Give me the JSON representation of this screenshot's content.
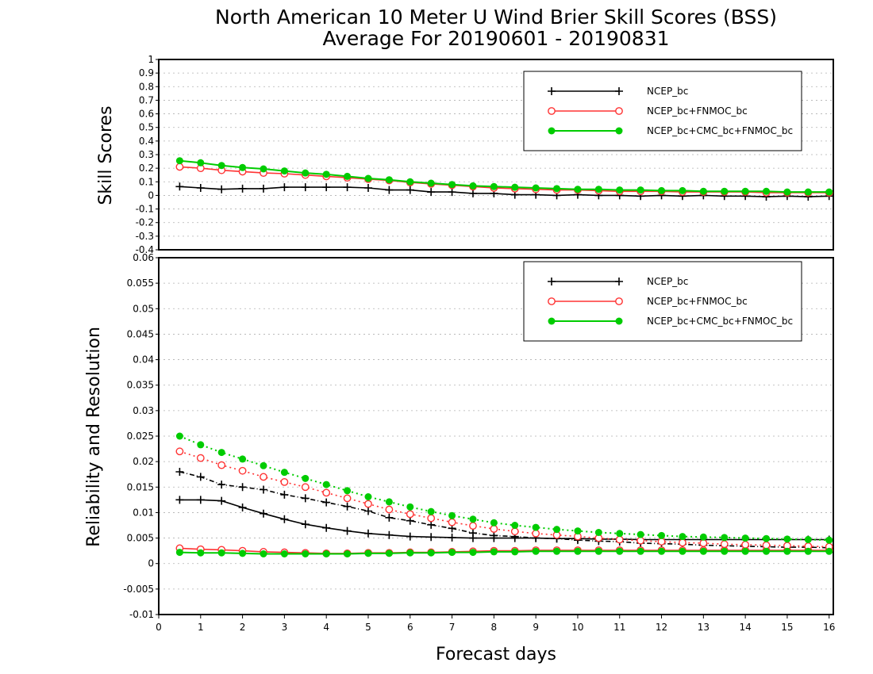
{
  "title_line1": "North American 10 Meter U Wind Brier Skill Scores (BSS)",
  "title_line2": "Average For 20190601 - 20190831",
  "xlabel": "Forecast days",
  "chart_data": [
    {
      "type": "line",
      "ylabel": "Skill Scores",
      "xlim": [
        0,
        16.1
      ],
      "ylim": [
        -0.4,
        1
      ],
      "yticks": [
        "-0.4",
        "-0.3",
        "-0.2",
        "-0.1",
        "0",
        "0.1",
        "0.2",
        "0.3",
        "0.4",
        "0.5",
        "0.6",
        "0.7",
        "0.8",
        "0.9",
        "1"
      ],
      "grid": true,
      "legend": "top-right",
      "x": [
        0.5,
        1,
        1.5,
        2,
        2.5,
        3,
        3.5,
        4,
        4.5,
        5,
        5.5,
        6,
        6.5,
        7,
        7.5,
        8,
        8.5,
        9,
        9.5,
        10,
        10.5,
        11,
        11.5,
        12,
        12.5,
        13,
        13.5,
        14,
        14.5,
        15,
        15.5,
        16
      ],
      "series": [
        {
          "name": "NCEP_bc",
          "color": "#000000",
          "marker": "plus",
          "values": [
            0.065,
            0.055,
            0.045,
            0.05,
            0.05,
            0.06,
            0.06,
            0.06,
            0.06,
            0.055,
            0.04,
            0.04,
            0.025,
            0.025,
            0.015,
            0.015,
            0.005,
            0.005,
            0.0,
            0.005,
            0.0,
            0.0,
            -0.005,
            0.0,
            -0.005,
            0.0,
            -0.005,
            -0.005,
            -0.01,
            -0.005,
            -0.01,
            -0.005
          ]
        },
        {
          "name": "NCEP_bc+FNMOC_bc",
          "color": "#ff3333",
          "marker": "circle",
          "values": [
            0.21,
            0.2,
            0.185,
            0.175,
            0.165,
            0.16,
            0.15,
            0.14,
            0.13,
            0.12,
            0.11,
            0.095,
            0.085,
            0.075,
            0.065,
            0.055,
            0.05,
            0.045,
            0.04,
            0.04,
            0.035,
            0.03,
            0.03,
            0.03,
            0.025,
            0.025,
            0.025,
            0.025,
            0.02,
            0.02,
            0.02,
            0.02
          ]
        },
        {
          "name": "NCEP_bc+CMC_bc+FNMOC_bc",
          "color": "#00cc00",
          "marker": "dot",
          "values": [
            0.255,
            0.24,
            0.22,
            0.205,
            0.195,
            0.18,
            0.165,
            0.155,
            0.14,
            0.125,
            0.115,
            0.1,
            0.09,
            0.08,
            0.07,
            0.065,
            0.06,
            0.055,
            0.05,
            0.045,
            0.045,
            0.04,
            0.04,
            0.035,
            0.035,
            0.03,
            0.03,
            0.03,
            0.03,
            0.025,
            0.025,
            0.025
          ]
        }
      ]
    },
    {
      "type": "line",
      "ylabel": "Reliability and Resolution",
      "xlim": [
        0,
        16.1
      ],
      "ylim": [
        -0.01,
        0.06
      ],
      "yticks": [
        "-0.01",
        "-0.005",
        "0",
        "0.005",
        "0.01",
        "0.015",
        "0.02",
        "0.025",
        "0.03",
        "0.035",
        "0.04",
        "0.045",
        "0.05",
        "0.055",
        "0.06"
      ],
      "xticks": [
        "0",
        "1",
        "2",
        "3",
        "4",
        "5",
        "6",
        "7",
        "8",
        "9",
        "10",
        "11",
        "12",
        "13",
        "14",
        "15",
        "16"
      ],
      "grid": true,
      "legend": "top-right",
      "x": [
        0.5,
        1,
        1.5,
        2,
        2.5,
        3,
        3.5,
        4,
        4.5,
        5,
        5.5,
        6,
        6.5,
        7,
        7.5,
        8,
        8.5,
        9,
        9.5,
        10,
        10.5,
        11,
        11.5,
        12,
        12.5,
        13,
        13.5,
        14,
        14.5,
        15,
        15.5,
        16
      ],
      "series": [
        {
          "name": "NCEP_bc",
          "color": "#000000",
          "marker": "plus",
          "role": "reliability",
          "values": [
            0.0125,
            0.0125,
            0.0123,
            0.011,
            0.0098,
            0.0087,
            0.0077,
            0.007,
            0.0064,
            0.0059,
            0.0056,
            0.0053,
            0.0052,
            0.0051,
            0.005,
            0.005,
            0.005,
            0.005,
            0.0049,
            0.0049,
            0.0048,
            0.0048,
            0.0047,
            0.0047,
            0.0047,
            0.0047,
            0.0047,
            0.0047,
            0.0047,
            0.0047,
            0.0047,
            0.0047
          ]
        },
        {
          "name": "NCEP_bc",
          "color": "#000000",
          "marker": "plus",
          "role": "resolution",
          "values": [
            0.018,
            0.017,
            0.0155,
            0.015,
            0.0145,
            0.0135,
            0.0128,
            0.012,
            0.0112,
            0.0103,
            0.009,
            0.0084,
            0.0076,
            0.0069,
            0.006,
            0.0055,
            0.0053,
            0.005,
            0.0049,
            0.0046,
            0.0044,
            0.0043,
            0.004,
            0.0039,
            0.0038,
            0.0036,
            0.0035,
            0.0034,
            0.0033,
            0.0032,
            0.0032,
            0.0031
          ]
        },
        {
          "name": "NCEP_bc+FNMOC_bc",
          "color": "#ff3333",
          "marker": "circle",
          "role": "reliability",
          "values": [
            0.003,
            0.0028,
            0.0027,
            0.0025,
            0.0023,
            0.0022,
            0.0021,
            0.002,
            0.002,
            0.0021,
            0.0021,
            0.0022,
            0.0022,
            0.0023,
            0.0024,
            0.0025,
            0.0025,
            0.0026,
            0.0026,
            0.0026,
            0.0026,
            0.0026,
            0.0026,
            0.0026,
            0.0026,
            0.0026,
            0.0026,
            0.0026,
            0.0026,
            0.0026,
            0.0026,
            0.0026
          ]
        },
        {
          "name": "NCEP_bc+FNMOC_bc",
          "color": "#ff3333",
          "marker": "circle",
          "role": "resolution",
          "values": [
            0.022,
            0.0207,
            0.0193,
            0.0182,
            0.017,
            0.016,
            0.015,
            0.0139,
            0.0128,
            0.0117,
            0.0106,
            0.0097,
            0.0089,
            0.0081,
            0.0074,
            0.0068,
            0.0063,
            0.0059,
            0.0056,
            0.0053,
            0.005,
            0.0047,
            0.0045,
            0.0043,
            0.0041,
            0.004,
            0.0038,
            0.0037,
            0.0036,
            0.0035,
            0.0034,
            0.0033
          ]
        },
        {
          "name": "NCEP_bc+CMC_bc+FNMOC_bc",
          "color": "#00cc00",
          "marker": "dot",
          "role": "reliability",
          "values": [
            0.0022,
            0.0021,
            0.0021,
            0.002,
            0.0019,
            0.0019,
            0.0019,
            0.0019,
            0.0019,
            0.002,
            0.002,
            0.0021,
            0.0021,
            0.0022,
            0.0022,
            0.0023,
            0.0023,
            0.0024,
            0.0024,
            0.0024,
            0.0024,
            0.0024,
            0.0024,
            0.0024,
            0.0024,
            0.0024,
            0.0024,
            0.0024,
            0.0024,
            0.0024,
            0.0024,
            0.0024
          ]
        },
        {
          "name": "NCEP_bc+CMC_bc+FNMOC_bc",
          "color": "#00cc00",
          "marker": "dot",
          "role": "resolution",
          "values": [
            0.025,
            0.0233,
            0.0218,
            0.0205,
            0.0192,
            0.0179,
            0.0167,
            0.0155,
            0.0143,
            0.0131,
            0.0121,
            0.0111,
            0.0102,
            0.0094,
            0.0087,
            0.008,
            0.0075,
            0.0071,
            0.0067,
            0.0064,
            0.0061,
            0.0059,
            0.0057,
            0.0055,
            0.0053,
            0.0052,
            0.0051,
            0.005,
            0.0049,
            0.0048,
            0.0047,
            0.0046
          ]
        }
      ]
    }
  ]
}
